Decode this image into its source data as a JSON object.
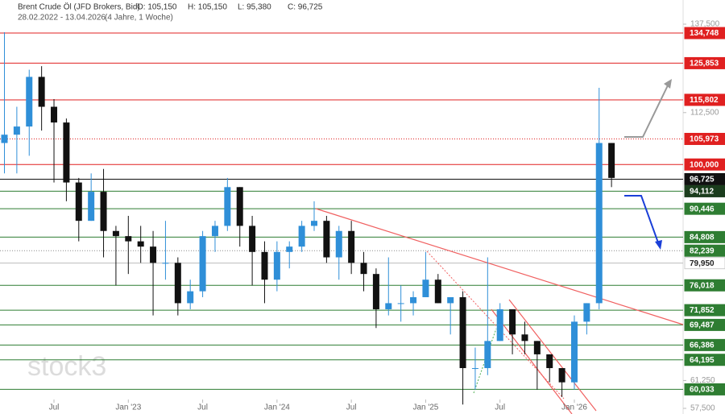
{
  "chart_data": {
    "type": "candlestick",
    "title": "Brent Crude Öl (JFD Brokers, Bid)",
    "quote": [
      "O: 105,150",
      "H: 105,150",
      "L: 95,380",
      "C: 96,725"
    ],
    "subtitle": "28.02.2022 - 13.04.2026",
    "period": "(4 Jahre, 1 Woche)",
    "watermark": "stock3",
    "log_scale": true,
    "up_color": "#2f8fd8",
    "down_color": "#111111",
    "ylim": [
      57500,
      137500
    ],
    "yticks": [
      {
        "value": 137500,
        "label": "137,500"
      },
      {
        "value": 112500,
        "label": "112,500"
      },
      {
        "value": 61250,
        "label": "61,250"
      },
      {
        "value": 57500,
        "label": "57,500"
      }
    ],
    "categories": [
      null,
      null,
      null,
      null,
      "Jul",
      null,
      null,
      null,
      null,
      null,
      "Jan '23",
      null,
      null,
      null,
      null,
      null,
      "Jul",
      null,
      null,
      null,
      null,
      null,
      "Jan '24",
      null,
      null,
      null,
      null,
      null,
      "Jul",
      null,
      null,
      null,
      null,
      null,
      "Jan '25",
      null,
      null,
      null,
      null,
      null,
      "Jul",
      null,
      null,
      null,
      null,
      null,
      "Jan '26",
      null,
      null,
      null
    ],
    "open": [
      105000,
      107000,
      109000,
      122000,
      114000,
      110000,
      96000,
      88000,
      94000,
      86000,
      85000,
      84000,
      83000,
      80000,
      80000,
      73000,
      75000,
      85000,
      87000,
      95000,
      87000,
      82000,
      77000,
      82000,
      83000,
      87000,
      88000,
      81000,
      86000,
      80000,
      78000,
      72000,
      73000,
      73000,
      74000,
      77000,
      73000,
      74000,
      63000,
      63000,
      67000,
      72000,
      68000,
      67000,
      65000,
      63000,
      61000,
      70000,
      73000,
      105000
    ],
    "high": [
      135000,
      114000,
      124000,
      125000,
      116000,
      111000,
      97000,
      98000,
      99000,
      87000,
      89000,
      87000,
      86000,
      88000,
      81000,
      77000,
      86000,
      88000,
      97000,
      95000,
      89000,
      84000,
      84000,
      84000,
      88000,
      92000,
      89000,
      87000,
      88000,
      82000,
      79000,
      81000,
      76000,
      75000,
      82000,
      78000,
      74000,
      75000,
      66000,
      81000,
      73000,
      72000,
      70000,
      67000,
      65000,
      63000,
      71000,
      73000,
      119000,
      105000
    ],
    "low": [
      98000,
      98000,
      102000,
      108000,
      96000,
      92000,
      84000,
      88000,
      81000,
      76000,
      78000,
      80000,
      71000,
      77000,
      71000,
      72000,
      74000,
      82000,
      86000,
      83000,
      76000,
      73000,
      75000,
      79000,
      82000,
      86000,
      80000,
      77000,
      78000,
      75000,
      69000,
      71000,
      70000,
      71000,
      74000,
      73000,
      68000,
      58000,
      60000,
      62000,
      67000,
      65000,
      65000,
      60000,
      61000,
      59000,
      60000,
      68000,
      72000,
      95000
    ],
    "close": [
      107000,
      109000,
      122000,
      114000,
      110000,
      96000,
      88000,
      94000,
      86000,
      85000,
      84000,
      83000,
      80000,
      80000,
      73000,
      75000,
      85000,
      87000,
      95000,
      87000,
      82000,
      77000,
      82000,
      83000,
      87000,
      88000,
      81000,
      86000,
      80000,
      78000,
      72000,
      73000,
      73000,
      74000,
      77000,
      73000,
      74000,
      63000,
      63000,
      67000,
      72000,
      68000,
      67000,
      65000,
      63000,
      61000,
      70000,
      73000,
      105000,
      97000
    ],
    "levels": [
      {
        "value": 134748,
        "label": "134,748",
        "color": "#e02020",
        "box": "#e02020",
        "dotted": false
      },
      {
        "value": 125853,
        "label": "125,853",
        "color": "#e02020",
        "box": "#e02020",
        "dotted": false
      },
      {
        "value": 115802,
        "label": "115,802",
        "color": "#e02020",
        "box": "#e02020",
        "dotted": false
      },
      {
        "value": 105973,
        "label": "105,973",
        "color": "#e02020",
        "box": "#e02020",
        "dotted": true
      },
      {
        "value": 100000,
        "label": "100,000",
        "color": "#e02020",
        "box": "#e02020",
        "dotted": false
      },
      {
        "value": 96725,
        "label": "96,725",
        "color": "#111111",
        "box": "#111111",
        "dotted": false
      },
      {
        "value": 94112,
        "label": "94,112",
        "color": "#2e7d32",
        "box": "#1b3d1d",
        "dotted": false
      },
      {
        "value": 90446,
        "label": "90,446",
        "color": "#2e7d32",
        "box": "#2e7d32",
        "dotted": false
      },
      {
        "value": 84808,
        "label": "84,808",
        "color": "#2e7d32",
        "box": "#2e7d32",
        "dotted": false
      },
      {
        "value": 82239,
        "label": "82,239",
        "color": "#888888",
        "box": "#2e7d32",
        "dotted": true
      },
      {
        "value": 79950,
        "label": "79,950",
        "color": "#bbbbbb",
        "box": "#ffffff",
        "dotted": false
      },
      {
        "value": 76018,
        "label": "76,018",
        "color": "#2e7d32",
        "box": "#2e7d32",
        "dotted": false
      },
      {
        "value": 71852,
        "label": "71,852",
        "color": "#2e7d32",
        "box": "#2e7d32",
        "dotted": false
      },
      {
        "value": 69487,
        "label": "69,487",
        "color": "#2e7d32",
        "box": "#2e7d32",
        "dotted": false
      },
      {
        "value": 66386,
        "label": "66,386",
        "color": "#2e7d32",
        "box": "#2e7d32",
        "dotted": false
      },
      {
        "value": 64195,
        "label": "64,195",
        "color": "#2e7d32",
        "box": "#2e7d32",
        "dotted": false
      },
      {
        "value": 60033,
        "label": "60,033",
        "color": "#2e7d32",
        "box": "#2e7d32",
        "dotted": false
      }
    ]
  }
}
